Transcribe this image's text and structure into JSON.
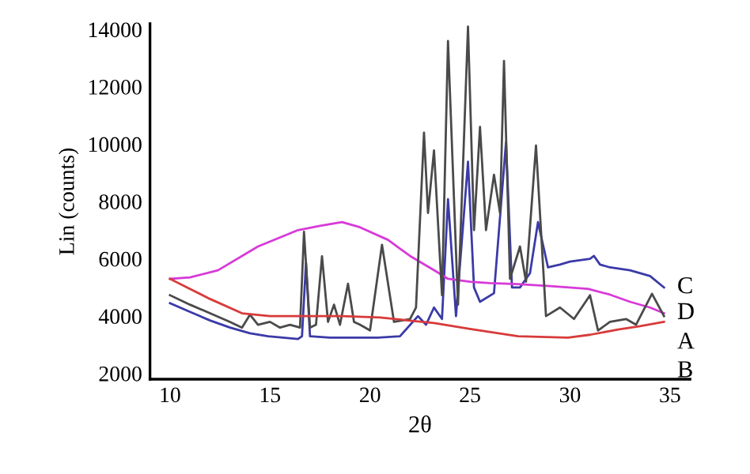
{
  "chart_data": {
    "type": "line",
    "xlabel": "2θ",
    "ylabel": "Lin (counts)",
    "xlim": [
      9,
      36
    ],
    "ylim": [
      1800,
      14200
    ],
    "xticks": [
      10,
      15,
      20,
      25,
      30,
      35
    ],
    "yticks": [
      2000,
      4000,
      6000,
      8000,
      10000,
      12000,
      14000
    ],
    "grid": false,
    "legend": false,
    "marker": "none",
    "line_style": "solid",
    "series": [
      {
        "name": "C",
        "color": "#3a3aa8",
        "x": [
          10,
          11,
          12,
          13,
          14,
          14.9,
          16.4,
          16.6,
          16.8,
          17,
          18,
          19,
          20.4,
          21.5,
          22.4,
          22.8,
          23.2,
          23.6,
          23.9,
          24.3,
          24.9,
          25.2,
          25.5,
          26.2,
          26.8,
          27.1,
          27.5,
          28,
          28.4,
          28.9,
          29.5,
          30,
          31,
          31.2,
          31.5,
          32,
          33,
          34,
          34.7
        ],
        "values": [
          4450,
          4150,
          3850,
          3600,
          3400,
          3300,
          3200,
          3300,
          5860,
          3300,
          3250,
          3250,
          3250,
          3300,
          4000,
          3700,
          4300,
          3900,
          8080,
          4000,
          9390,
          5000,
          4500,
          4800,
          10070,
          5000,
          5000,
          5500,
          7280,
          5700,
          5800,
          5900,
          6000,
          6100,
          5800,
          5700,
          5600,
          5400,
          5000
        ]
      },
      {
        "name": "D",
        "color": "#d83ad8",
        "x": [
          10,
          11,
          12.4,
          14.4,
          16.4,
          17.5,
          18.6,
          19.5,
          20.9,
          22,
          23.4,
          23.9,
          25,
          26,
          27.4,
          29,
          30.9,
          32,
          33,
          34,
          34.7
        ],
        "values": [
          5300,
          5350,
          5600,
          6430,
          7000,
          7150,
          7280,
          7100,
          6660,
          6100,
          5520,
          5300,
          5200,
          5150,
          5120,
          5050,
          4950,
          4750,
          4500,
          4300,
          4100
        ]
      },
      {
        "name": "A",
        "color": "#4a4a4a",
        "x": [
          10,
          11,
          12,
          13,
          13.6,
          14,
          14.4,
          15,
          15.5,
          16,
          16.5,
          16.7,
          17,
          17.3,
          17.6,
          17.9,
          18.2,
          18.5,
          18.9,
          19.2,
          19.5,
          20,
          20.6,
          21.2,
          22,
          22.3,
          22.7,
          22.9,
          23.2,
          23.6,
          23.9,
          24.4,
          24.9,
          25.2,
          25.5,
          25.8,
          26.2,
          26.5,
          26.7,
          27,
          27.5,
          27.8,
          28.3,
          28.8,
          29.5,
          30.2,
          31,
          31.4,
          32,
          32.8,
          33.3,
          34.1,
          34.7
        ],
        "values": [
          4730,
          4400,
          4100,
          3800,
          3600,
          4050,
          3700,
          3800,
          3600,
          3700,
          3600,
          6940,
          3600,
          3700,
          6090,
          3800,
          4400,
          3700,
          5130,
          3800,
          3700,
          3500,
          6490,
          3800,
          3900,
          4300,
          10400,
          7600,
          9780,
          4730,
          13600,
          4400,
          14100,
          7000,
          10600,
          7000,
          8930,
          7600,
          12900,
          5300,
          6430,
          5200,
          9950,
          4000,
          4300,
          3900,
          4730,
          3500,
          3800,
          3900,
          3700,
          4780,
          4000
        ]
      },
      {
        "name": "B",
        "color": "#d83a3a",
        "x": [
          10,
          11,
          12,
          13.6,
          15,
          16.5,
          18.6,
          20.5,
          23.2,
          25,
          27.4,
          29.9,
          31,
          32.4,
          33.5,
          34.7
        ],
        "values": [
          5300,
          4950,
          4600,
          4100,
          4000,
          4000,
          4000,
          3950,
          3760,
          3550,
          3300,
          3250,
          3350,
          3530,
          3650,
          3800
        ]
      }
    ]
  }
}
